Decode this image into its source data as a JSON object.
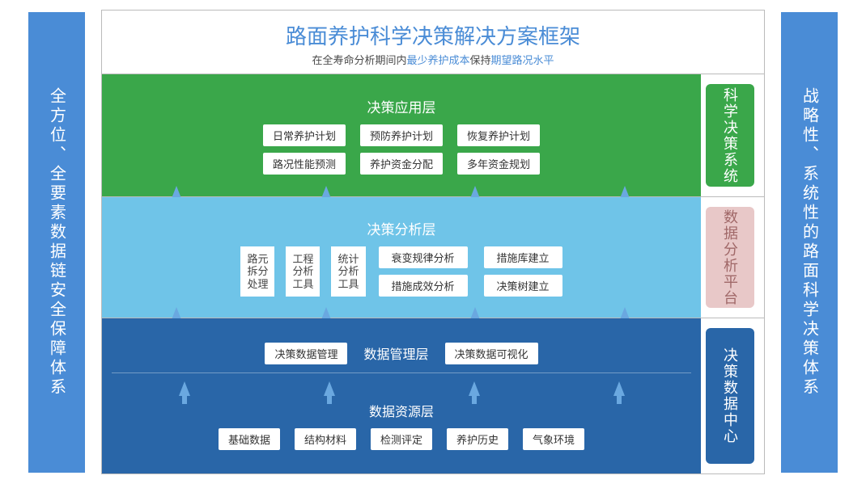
{
  "colors": {
    "pillar_bg": "#4a8cd6",
    "title_color": "#4a8cd6",
    "sub_highlight": "#4a8cd6",
    "tier1_bg": "#3aa74a",
    "tier1_text": "#ffffff",
    "tier1_side_bg": "#3aa74a",
    "tier1_side_text": "#ffffff",
    "tier2_bg": "#6fc4e8",
    "tier2_text": "#ffffff",
    "tier2_side_bg": "#e8c8c8",
    "tier2_side_text": "#a06868",
    "tier3_bg": "#2966a8",
    "tier3_text": "#ffffff",
    "tier3_side_bg": "#2966a8",
    "tier3_side_text": "#ffffff",
    "chip_bg": "#ffffff",
    "chip_text": "#444444",
    "arrow_color": "#6aa8e0",
    "border_color": "#b8b8b8"
  },
  "pillars": {
    "left": "全方位、全要素数据链安全保障体系",
    "right": "战略性、系统性的路面科学决策体系"
  },
  "header": {
    "title": "路面养护科学决策解决方案框架",
    "sub_parts": {
      "p1": "在全寿命分析期间内",
      "p2": "最少养护成本",
      "p3": "保持",
      "p4": "期望路况水平"
    }
  },
  "tier1": {
    "title": "决策应用层",
    "side": "科学决策系统",
    "row1": [
      "日常养护计划",
      "预防养护计划",
      "恢复养护计划"
    ],
    "row2": [
      "路况性能预测",
      "养护资金分配",
      "多年资金规划"
    ]
  },
  "tier2": {
    "title": "决策分析层",
    "side": "数据分析平台",
    "left": [
      "路元\n拆分\n处理",
      "工程\n分析\n工具",
      "统计\n分析\n工具"
    ],
    "right1": [
      "衰变规律分析",
      "措施库建立"
    ],
    "right2": [
      "措施成效分析",
      "决策树建立"
    ]
  },
  "tier3": {
    "side": "决策数据中心",
    "mgmt": {
      "title": "数据管理层",
      "left": "决策数据管理",
      "right": "决策数据可视化"
    },
    "res": {
      "title": "数据资源层",
      "items": [
        "基础数据",
        "结构材料",
        "检测评定",
        "养护历史",
        "气象环境"
      ]
    }
  },
  "arrows": {
    "count": 4
  }
}
